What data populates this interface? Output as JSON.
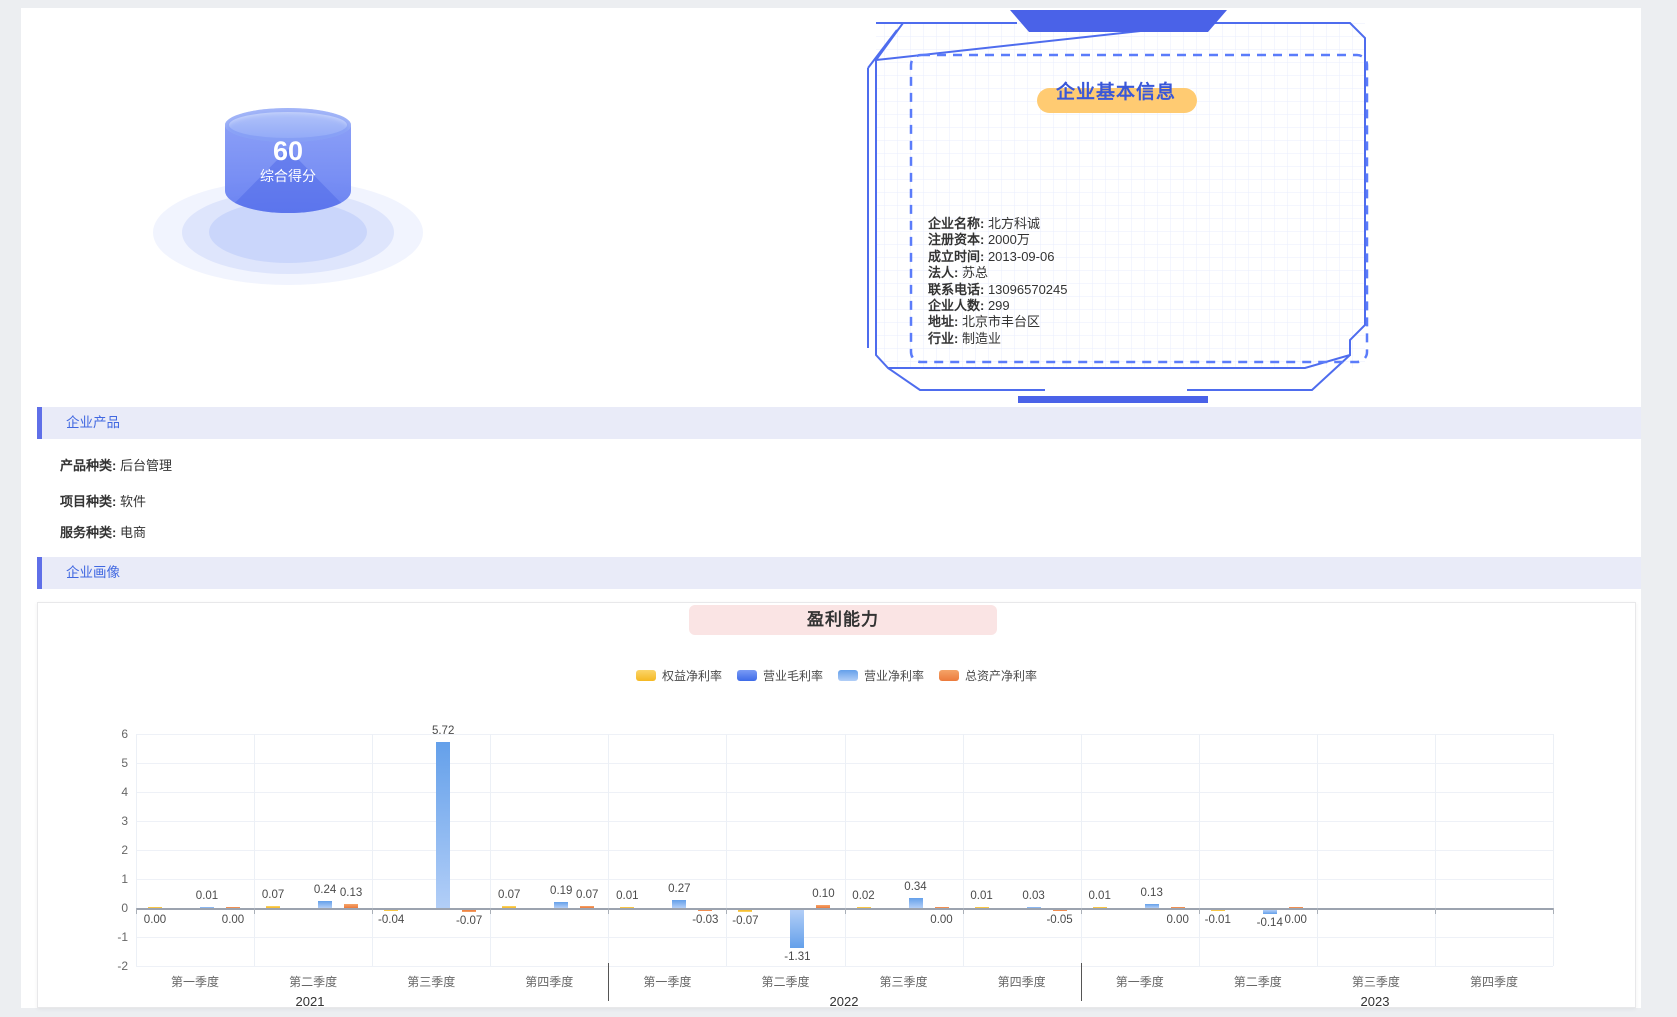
{
  "score_widget": {
    "score": "60",
    "label": "综合得分"
  },
  "info_panel": {
    "title": "企业基本信息",
    "fields": [
      {
        "label": "企业名称:",
        "value": "北方科诚"
      },
      {
        "label": "注册资本:",
        "value": "2000万"
      },
      {
        "label": "成立时间:",
        "value": "2013-09-06"
      },
      {
        "label": "法人:",
        "value": "苏总"
      },
      {
        "label": "联系电话:",
        "value": "13096570245"
      },
      {
        "label": "企业人数:",
        "value": "299"
      },
      {
        "label": "地址:",
        "value": "北京市丰台区"
      },
      {
        "label": "行业:",
        "value": "制造业"
      }
    ]
  },
  "sections": {
    "products": {
      "title": "企业产品",
      "fields": [
        {
          "label": "产品种类:",
          "value": "后台管理"
        },
        {
          "label": "项目种类:",
          "value": "软件"
        },
        {
          "label": "服务种类:",
          "value": "电商"
        }
      ]
    },
    "portrait": {
      "title": "企业画像"
    }
  },
  "chart_data": {
    "type": "bar",
    "title": "盈利能力",
    "categories": [
      "第一季度",
      "第二季度",
      "第三季度",
      "第四季度",
      "第一季度",
      "第二季度",
      "第三季度",
      "第四季度",
      "第一季度",
      "第二季度",
      "第三季度",
      "第四季度"
    ],
    "year_groups": [
      {
        "label": "2021",
        "span": 4
      },
      {
        "label": "2022",
        "span": 4
      },
      {
        "label": "2023",
        "span": 4
      }
    ],
    "ylim": [
      -2,
      6
    ],
    "yticks": [
      6,
      5,
      4,
      3,
      2,
      1,
      0,
      -1,
      -2
    ],
    "grid": true,
    "legend_position": "top",
    "series": [
      {
        "name": "权益净利率",
        "color_top": "#fbd56a",
        "color_bottom": "#f5b822",
        "values": [
          0.0,
          0.07,
          -0.04,
          0.07,
          0.01,
          -0.07,
          0.02,
          0.01,
          0.01,
          -0.01,
          null,
          null
        ]
      },
      {
        "name": "营业毛利率",
        "color_top": "#7a9bf5",
        "color_bottom": "#3e6be8",
        "values": [
          null,
          null,
          null,
          null,
          null,
          null,
          null,
          null,
          null,
          null,
          null,
          null
        ]
      },
      {
        "name": "营业净利率",
        "color_top": "#64a0ea",
        "color_bottom": "#b2cef7",
        "values": [
          0.01,
          0.24,
          5.72,
          0.19,
          0.27,
          -1.31,
          0.34,
          0.03,
          0.13,
          -0.14,
          null,
          null
        ]
      },
      {
        "name": "总资产净利率",
        "color_top": "#f5a468",
        "color_bottom": "#ec7a3c",
        "values": [
          0.0,
          0.13,
          -0.07,
          0.07,
          -0.03,
          0.1,
          0.0,
          -0.05,
          0.0,
          0.0,
          null,
          null
        ]
      }
    ]
  },
  "colors": {
    "accent_blue": "#4a62e8",
    "dashed_blue": "#5b7cfa",
    "section_bg": "#e9ebf8",
    "title_highlight": "#ffcb72",
    "chart_title_bg": "#fae4e4"
  }
}
